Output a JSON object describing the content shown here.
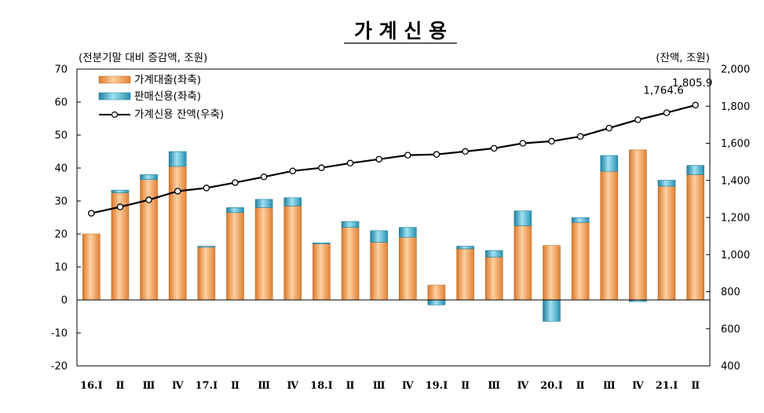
{
  "chart_data": {
    "type": "bar",
    "title": "가 계 신 용",
    "left_axis_unit": "(전분기말 대비 증감액, 조원)",
    "right_axis_unit": "(잔액, 조원)",
    "ylim_left": [
      -20,
      70
    ],
    "yticks_left": [
      "70",
      "60",
      "50",
      "40",
      "30",
      "20",
      "10",
      "0",
      "-10",
      "-20"
    ],
    "ylim_right": [
      400,
      2000
    ],
    "yticks_right": [
      "2,000",
      "1,800",
      "1,600",
      "1,400",
      "1,200",
      "1,000",
      "800",
      "600",
      "400"
    ],
    "categories": [
      "16.Ⅰ",
      "Ⅱ",
      "Ⅲ",
      "Ⅳ",
      "17.Ⅰ",
      "Ⅱ",
      "Ⅲ",
      "Ⅳ",
      "18.Ⅰ",
      "Ⅱ",
      "Ⅲ",
      "Ⅳ",
      "19.Ⅰ",
      "Ⅱ",
      "Ⅲ",
      "Ⅳ",
      "20.Ⅰ",
      "Ⅱ",
      "Ⅲ",
      "Ⅳ",
      "21.Ⅰ",
      "Ⅱ"
    ],
    "series": [
      {
        "name": "가계대출(좌축)",
        "kind": "bar",
        "color": "#f0a050",
        "values": [
          20.0,
          32.5,
          36.5,
          40.5,
          16.0,
          26.5,
          28.0,
          28.5,
          17.0,
          22.0,
          17.5,
          19.0,
          4.5,
          15.5,
          13.0,
          22.5,
          16.5,
          23.5,
          39.0,
          45.5,
          34.5,
          38.0
        ]
      },
      {
        "name": "판매신용(좌축)",
        "kind": "stacked-bar",
        "color": "#40a8c8",
        "values": [
          0.0,
          0.8,
          1.5,
          4.5,
          0.3,
          1.5,
          2.5,
          2.5,
          0.3,
          1.8,
          3.5,
          3.0,
          -1.5,
          0.8,
          2.0,
          4.5,
          -6.5,
          1.5,
          4.8,
          -0.5,
          1.8,
          2.8
        ]
      },
      {
        "name": "가계신용 잔액(우축)",
        "kind": "line",
        "color": "#000000",
        "values": [
          1223,
          1257,
          1295,
          1342,
          1359,
          1388,
          1419,
          1451,
          1468,
          1493,
          1514,
          1536,
          1540,
          1556,
          1573,
          1600,
          1611,
          1637,
          1682,
          1727,
          1764.6,
          1805.9
        ]
      }
    ],
    "annotations": [
      "1,764.6",
      "1,805.9"
    ],
    "annotation_indices": [
      20,
      21
    ],
    "legend_position": "top-left",
    "grid": false
  }
}
